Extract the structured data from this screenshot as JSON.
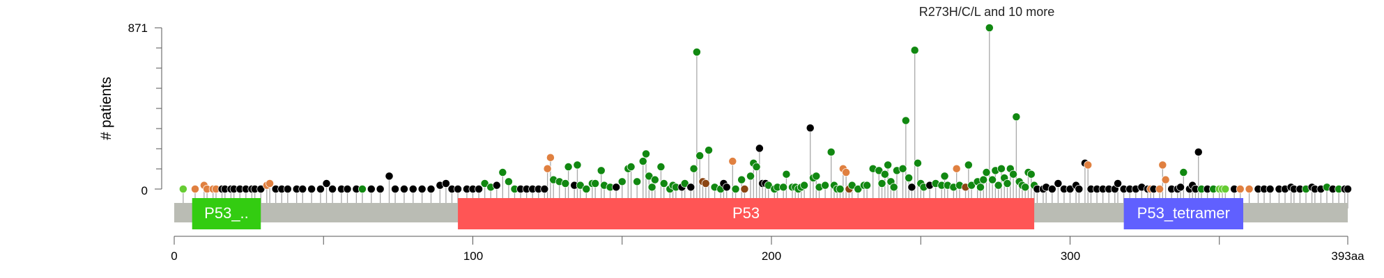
{
  "chart_data": {
    "type": "lollipop",
    "y_axis": {
      "label": "# patients",
      "ticks": [
        "0",
        "871"
      ],
      "range": [
        0,
        871
      ]
    },
    "x_axis": {
      "ticks": [
        "0",
        "100",
        "200",
        "300",
        "393aa"
      ],
      "range": [
        0,
        393
      ]
    },
    "annotation": {
      "text": "R273H/C/L and 10 more",
      "position": 273
    },
    "domains": [
      {
        "label": "P53_..",
        "start": 6,
        "end": 29,
        "color": "#33cc11"
      },
      {
        "label": "P53",
        "start": 95,
        "end": 288,
        "color": "#ff5555"
      },
      {
        "label": "P53_tetramer",
        "start": 318,
        "end": 358,
        "color": "#6060ff"
      }
    ],
    "colors": {
      "missense": "#118811",
      "truncating": "#000000",
      "inframe": "#8b4513",
      "splice": "#e08040",
      "other": "#66cc33",
      "protein_bar": "#babcb4"
    },
    "mutations": [
      [
        3,
        0,
        "o"
      ],
      [
        7,
        0,
        "s"
      ],
      [
        10,
        20,
        "s"
      ],
      [
        11,
        0,
        "s"
      ],
      [
        13,
        0,
        "s"
      ],
      [
        14,
        0,
        "s"
      ],
      [
        16,
        0,
        "t"
      ],
      [
        17,
        0,
        "t"
      ],
      [
        19,
        0,
        "t"
      ],
      [
        20,
        0,
        "t"
      ],
      [
        22,
        0,
        "t"
      ],
      [
        24,
        0,
        "t"
      ],
      [
        26,
        0,
        "t"
      ],
      [
        27,
        0,
        "t"
      ],
      [
        29,
        0,
        "t"
      ],
      [
        31,
        20,
        "s"
      ],
      [
        32,
        30,
        "s"
      ],
      [
        34,
        0,
        "t"
      ],
      [
        36,
        0,
        "t"
      ],
      [
        38,
        0,
        "t"
      ],
      [
        41,
        0,
        "t"
      ],
      [
        43,
        0,
        "t"
      ],
      [
        46,
        0,
        "t"
      ],
      [
        49,
        0,
        "t"
      ],
      [
        51,
        30,
        "t"
      ],
      [
        53,
        0,
        "t"
      ],
      [
        56,
        0,
        "t"
      ],
      [
        58,
        0,
        "t"
      ],
      [
        61,
        0,
        "t"
      ],
      [
        63,
        0,
        "m"
      ],
      [
        66,
        0,
        "t"
      ],
      [
        69,
        0,
        "t"
      ],
      [
        72,
        70,
        "t"
      ],
      [
        74,
        0,
        "t"
      ],
      [
        77,
        0,
        "t"
      ],
      [
        80,
        0,
        "t"
      ],
      [
        83,
        0,
        "t"
      ],
      [
        86,
        0,
        "t"
      ],
      [
        89,
        20,
        "t"
      ],
      [
        91,
        30,
        "t"
      ],
      [
        93,
        0,
        "t"
      ],
      [
        95,
        0,
        "t"
      ],
      [
        98,
        0,
        "t"
      ],
      [
        100,
        0,
        "t"
      ],
      [
        102,
        0,
        "t"
      ],
      [
        104,
        30,
        "m"
      ],
      [
        106,
        10,
        "m"
      ],
      [
        108,
        20,
        "t"
      ],
      [
        110,
        90,
        "m"
      ],
      [
        112,
        40,
        "m"
      ],
      [
        114,
        0,
        "m"
      ],
      [
        116,
        0,
        "t"
      ],
      [
        118,
        0,
        "t"
      ],
      [
        120,
        0,
        "t"
      ],
      [
        122,
        0,
        "t"
      ],
      [
        124,
        0,
        "t"
      ],
      [
        125,
        110,
        "s"
      ],
      [
        126,
        170,
        "s"
      ],
      [
        127,
        50,
        "m"
      ],
      [
        129,
        40,
        "m"
      ],
      [
        131,
        30,
        "m"
      ],
      [
        132,
        120,
        "m"
      ],
      [
        134,
        20,
        "t"
      ],
      [
        135,
        130,
        "m"
      ],
      [
        136,
        20,
        "m"
      ],
      [
        138,
        0,
        "m"
      ],
      [
        140,
        30,
        "m"
      ],
      [
        141,
        30,
        "m"
      ],
      [
        143,
        100,
        "m"
      ],
      [
        144,
        20,
        "m"
      ],
      [
        146,
        10,
        "m"
      ],
      [
        148,
        10,
        "t"
      ],
      [
        150,
        40,
        "m"
      ],
      [
        152,
        110,
        "m"
      ],
      [
        153,
        120,
        "m"
      ],
      [
        155,
        40,
        "m"
      ],
      [
        157,
        150,
        "m"
      ],
      [
        158,
        190,
        "m"
      ],
      [
        159,
        70,
        "m"
      ],
      [
        160,
        10,
        "m"
      ],
      [
        161,
        50,
        "m"
      ],
      [
        163,
        120,
        "m"
      ],
      [
        164,
        30,
        "m"
      ],
      [
        166,
        0,
        "m"
      ],
      [
        167,
        20,
        "m"
      ],
      [
        168,
        10,
        "m"
      ],
      [
        170,
        10,
        "t"
      ],
      [
        171,
        30,
        "m"
      ],
      [
        173,
        10,
        "t"
      ],
      [
        174,
        110,
        "m"
      ],
      [
        175,
        740,
        "m"
      ],
      [
        176,
        180,
        "m"
      ],
      [
        177,
        40,
        "i"
      ],
      [
        178,
        30,
        "i"
      ],
      [
        179,
        210,
        "m"
      ],
      [
        181,
        10,
        "m"
      ],
      [
        183,
        0,
        "m"
      ],
      [
        184,
        30,
        "t"
      ],
      [
        185,
        10,
        "t"
      ],
      [
        187,
        150,
        "s"
      ],
      [
        188,
        0,
        "m"
      ],
      [
        190,
        50,
        "m"
      ],
      [
        191,
        0,
        "i"
      ],
      [
        193,
        70,
        "m"
      ],
      [
        194,
        140,
        "m"
      ],
      [
        195,
        120,
        "m"
      ],
      [
        196,
        220,
        "t"
      ],
      [
        197,
        30,
        "t"
      ],
      [
        198,
        30,
        "t"
      ],
      [
        199,
        20,
        "m"
      ],
      [
        201,
        0,
        "m"
      ],
      [
        202,
        10,
        "m"
      ],
      [
        204,
        10,
        "m"
      ],
      [
        205,
        80,
        "m"
      ],
      [
        207,
        10,
        "m"
      ],
      [
        208,
        10,
        "m"
      ],
      [
        209,
        0,
        "m"
      ],
      [
        210,
        10,
        "m"
      ],
      [
        211,
        20,
        "m"
      ],
      [
        213,
        330,
        "t"
      ],
      [
        214,
        60,
        "m"
      ],
      [
        215,
        70,
        "m"
      ],
      [
        216,
        10,
        "m"
      ],
      [
        218,
        20,
        "m"
      ],
      [
        220,
        200,
        "m"
      ],
      [
        221,
        20,
        "m"
      ],
      [
        222,
        0,
        "m"
      ],
      [
        223,
        0,
        "m"
      ],
      [
        224,
        110,
        "s"
      ],
      [
        225,
        90,
        "s"
      ],
      [
        226,
        0,
        "i"
      ],
      [
        227,
        20,
        "m"
      ],
      [
        229,
        0,
        "m"
      ],
      [
        231,
        20,
        "m"
      ],
      [
        232,
        20,
        "m"
      ],
      [
        234,
        110,
        "m"
      ],
      [
        236,
        100,
        "m"
      ],
      [
        237,
        30,
        "m"
      ],
      [
        238,
        80,
        "m"
      ],
      [
        239,
        130,
        "m"
      ],
      [
        240,
        40,
        "m"
      ],
      [
        241,
        10,
        "m"
      ],
      [
        242,
        100,
        "m"
      ],
      [
        244,
        110,
        "m"
      ],
      [
        245,
        370,
        "m"
      ],
      [
        246,
        60,
        "m"
      ],
      [
        247,
        10,
        "t"
      ],
      [
        248,
        750,
        "m"
      ],
      [
        249,
        140,
        "m"
      ],
      [
        250,
        30,
        "m"
      ],
      [
        251,
        10,
        "m"
      ],
      [
        253,
        20,
        "t"
      ],
      [
        255,
        30,
        "m"
      ],
      [
        257,
        20,
        "m"
      ],
      [
        258,
        70,
        "m"
      ],
      [
        259,
        20,
        "m"
      ],
      [
        261,
        10,
        "m"
      ],
      [
        262,
        110,
        "s"
      ],
      [
        263,
        20,
        "m"
      ],
      [
        265,
        10,
        "i"
      ],
      [
        266,
        130,
        "m"
      ],
      [
        267,
        20,
        "m"
      ],
      [
        269,
        40,
        "m"
      ],
      [
        270,
        10,
        "m"
      ],
      [
        271,
        50,
        "m"
      ],
      [
        272,
        90,
        "m"
      ],
      [
        273,
        871,
        "m"
      ],
      [
        274,
        50,
        "m"
      ],
      [
        275,
        100,
        "m"
      ],
      [
        276,
        20,
        "m"
      ],
      [
        277,
        110,
        "m"
      ],
      [
        278,
        60,
        "m"
      ],
      [
        279,
        30,
        "m"
      ],
      [
        280,
        110,
        "m"
      ],
      [
        281,
        80,
        "m"
      ],
      [
        282,
        390,
        "m"
      ],
      [
        283,
        40,
        "m"
      ],
      [
        284,
        20,
        "m"
      ],
      [
        285,
        10,
        "m"
      ],
      [
        286,
        90,
        "m"
      ],
      [
        287,
        80,
        "m"
      ],
      [
        288,
        20,
        "m"
      ],
      [
        289,
        0,
        "t"
      ],
      [
        291,
        0,
        "t"
      ],
      [
        292,
        10,
        "t"
      ],
      [
        294,
        0,
        "t"
      ],
      [
        296,
        30,
        "t"
      ],
      [
        298,
        0,
        "t"
      ],
      [
        300,
        0,
        "t"
      ],
      [
        302,
        20,
        "t"
      ],
      [
        303,
        0,
        "t"
      ],
      [
        305,
        140,
        "t"
      ],
      [
        306,
        130,
        "s"
      ],
      [
        307,
        0,
        "t"
      ],
      [
        309,
        0,
        "t"
      ],
      [
        311,
        0,
        "t"
      ],
      [
        313,
        0,
        "t"
      ],
      [
        315,
        0,
        "t"
      ],
      [
        316,
        30,
        "t"
      ],
      [
        318,
        0,
        "t"
      ],
      [
        320,
        0,
        "t"
      ],
      [
        322,
        0,
        "t"
      ],
      [
        324,
        10,
        "t"
      ],
      [
        326,
        0,
        "t"
      ],
      [
        327,
        0,
        "s"
      ],
      [
        328,
        0,
        "t"
      ],
      [
        330,
        0,
        "s"
      ],
      [
        331,
        130,
        "s"
      ],
      [
        332,
        50,
        "s"
      ],
      [
        334,
        0,
        "t"
      ],
      [
        336,
        0,
        "t"
      ],
      [
        337,
        10,
        "t"
      ],
      [
        338,
        90,
        "m"
      ],
      [
        340,
        0,
        "t"
      ],
      [
        341,
        20,
        "t"
      ],
      [
        342,
        0,
        "t"
      ],
      [
        343,
        200,
        "t"
      ],
      [
        344,
        0,
        "m"
      ],
      [
        346,
        0,
        "t"
      ],
      [
        348,
        0,
        "m"
      ],
      [
        350,
        0,
        "o"
      ],
      [
        351,
        0,
        "o"
      ],
      [
        352,
        0,
        "o"
      ],
      [
        355,
        0,
        "t"
      ],
      [
        357,
        0,
        "s"
      ],
      [
        360,
        0,
        "s"
      ],
      [
        363,
        0,
        "t"
      ],
      [
        365,
        0,
        "t"
      ],
      [
        367,
        0,
        "t"
      ],
      [
        370,
        0,
        "t"
      ],
      [
        372,
        0,
        "t"
      ],
      [
        374,
        10,
        "t"
      ],
      [
        375,
        0,
        "t"
      ],
      [
        377,
        0,
        "t"
      ],
      [
        379,
        0,
        "m"
      ],
      [
        381,
        10,
        "t"
      ],
      [
        382,
        0,
        "t"
      ],
      [
        384,
        0,
        "t"
      ],
      [
        386,
        10,
        "m"
      ],
      [
        388,
        0,
        "t"
      ],
      [
        390,
        0,
        "m"
      ],
      [
        392,
        0,
        "t"
      ],
      [
        393,
        0,
        "t"
      ]
    ]
  }
}
